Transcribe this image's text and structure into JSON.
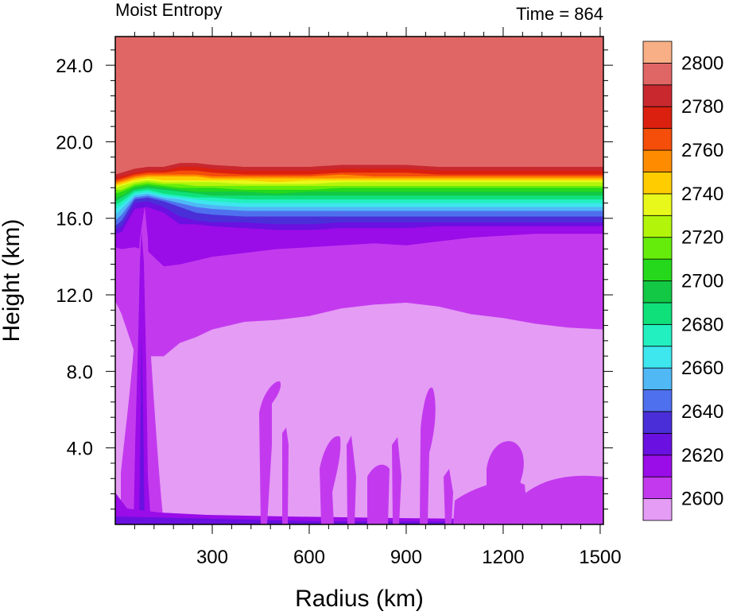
{
  "chart_data": {
    "type": "heatmap",
    "title_left": "Moist Entropy",
    "title_right": "Time = 864",
    "xlabel": "Radius (km)",
    "ylabel": "Height (km)",
    "xlim": [
      0,
      1510
    ],
    "ylim": [
      0,
      25.5
    ],
    "x_ticks": [
      300,
      600,
      900,
      1200,
      1500
    ],
    "x_tick_labels": [
      "300",
      "600",
      "900",
      "1200",
      "1500"
    ],
    "y_ticks": [
      4,
      8,
      12,
      16,
      20,
      24
    ],
    "y_tick_labels": [
      "4.0",
      "8.0",
      "12.0",
      "16.0",
      "20.0",
      "24.0"
    ],
    "colorbar": {
      "levels": [
        2590,
        2600,
        2610,
        2620,
        2630,
        2640,
        2650,
        2660,
        2670,
        2680,
        2690,
        2700,
        2710,
        2720,
        2730,
        2740,
        2750,
        2760,
        2770,
        2780,
        2790,
        2800,
        2810
      ],
      "labels": [
        "2600",
        "2620",
        "2640",
        "2660",
        "2680",
        "2700",
        "2720",
        "2740",
        "2760",
        "2780",
        "2800"
      ],
      "label_values": [
        2600,
        2620,
        2640,
        2660,
        2680,
        2700,
        2720,
        2740,
        2760,
        2780,
        2800
      ],
      "colors": [
        "#E59CF5",
        "#C33AEE",
        "#9A0CE8",
        "#6A10E0",
        "#4A2FD8",
        "#4F70EE",
        "#4FB8F5",
        "#3EE6EE",
        "#22F0C0",
        "#10E07A",
        "#12C845",
        "#25D81B",
        "#66EC0A",
        "#B2F50B",
        "#E8F81A",
        "#FFCC00",
        "#FF8C00",
        "#F44E0A",
        "#DB2010",
        "#C8282E",
        "#E06666",
        "#F8AF86"
      ]
    },
    "shading": {
      "boundary_radius_km": [
        0,
        20,
        60,
        100,
        150,
        200,
        250,
        300,
        400,
        500,
        600,
        700,
        800,
        900,
        1000,
        1100,
        1200,
        1300,
        1400,
        1510
      ],
      "level_heights_km": [
        {
          "level": 2600,
          "z": [
            11.7,
            11.0,
            9.0,
            8.8,
            8.8,
            9.5,
            9.8,
            10.2,
            10.6,
            10.7,
            10.9,
            11.3,
            11.5,
            11.6,
            11.4,
            11.0,
            10.8,
            10.5,
            10.3,
            10.2
          ]
        },
        {
          "level": 2610,
          "z": [
            14.5,
            14.4,
            14.5,
            14.3,
            13.5,
            13.6,
            13.8,
            14.0,
            14.2,
            14.4,
            14.5,
            14.6,
            14.7,
            14.6,
            14.8,
            15.0,
            15.1,
            15.2,
            15.2,
            15.2
          ]
        },
        {
          "level": 2620,
          "z": [
            15.2,
            15.3,
            16.5,
            16.6,
            16.3,
            15.7,
            15.7,
            15.6,
            15.5,
            15.4,
            15.4,
            15.5,
            15.5,
            15.5,
            15.6,
            15.6,
            15.6,
            15.6,
            15.6,
            15.6
          ]
        },
        {
          "level": 2630,
          "z": [
            15.4,
            15.6,
            16.8,
            16.9,
            16.6,
            16.1,
            15.9,
            15.8,
            15.8,
            15.7,
            15.7,
            15.8,
            15.8,
            15.8,
            15.8,
            15.8,
            15.8,
            15.8,
            15.8,
            15.8
          ]
        },
        {
          "level": 2640,
          "z": [
            15.6,
            15.9,
            17.0,
            17.1,
            16.9,
            16.6,
            16.3,
            16.2,
            16.1,
            16.1,
            16.1,
            16.1,
            16.1,
            16.1,
            16.1,
            16.1,
            16.1,
            16.1,
            16.1,
            16.1
          ]
        },
        {
          "level": 2650,
          "z": [
            15.9,
            16.2,
            17.1,
            17.2,
            17.0,
            16.8,
            16.6,
            16.5,
            16.4,
            16.4,
            16.4,
            16.4,
            16.4,
            16.4,
            16.4,
            16.4,
            16.4,
            16.4,
            16.4,
            16.4
          ]
        },
        {
          "level": 2660,
          "z": [
            16.2,
            16.5,
            17.2,
            17.3,
            17.1,
            17.0,
            16.8,
            16.7,
            16.6,
            16.6,
            16.6,
            16.6,
            16.6,
            16.6,
            16.6,
            16.6,
            16.6,
            16.6,
            16.6,
            16.6
          ]
        },
        {
          "level": 2670,
          "z": [
            16.5,
            16.7,
            17.3,
            17.4,
            17.2,
            17.1,
            17.0,
            16.9,
            16.8,
            16.8,
            16.8,
            16.8,
            16.8,
            16.8,
            16.8,
            16.8,
            16.8,
            16.8,
            16.8,
            16.8
          ]
        },
        {
          "level": 2680,
          "z": [
            16.7,
            16.9,
            17.4,
            17.5,
            17.3,
            17.2,
            17.1,
            17.1,
            17.0,
            17.0,
            17.0,
            17.0,
            17.0,
            17.0,
            17.0,
            17.0,
            17.0,
            17.0,
            17.0,
            17.0
          ]
        },
        {
          "level": 2690,
          "z": [
            16.9,
            17.1,
            17.5,
            17.6,
            17.5,
            17.4,
            17.3,
            17.2,
            17.2,
            17.2,
            17.2,
            17.2,
            17.2,
            17.2,
            17.2,
            17.2,
            17.2,
            17.2,
            17.2,
            17.2
          ]
        },
        {
          "level": 2700,
          "z": [
            17.1,
            17.2,
            17.6,
            17.7,
            17.6,
            17.5,
            17.4,
            17.4,
            17.4,
            17.3,
            17.4,
            17.4,
            17.4,
            17.4,
            17.4,
            17.4,
            17.4,
            17.4,
            17.4,
            17.4
          ]
        },
        {
          "level": 2710,
          "z": [
            17.3,
            17.4,
            17.7,
            17.8,
            17.7,
            17.6,
            17.6,
            17.6,
            17.5,
            17.5,
            17.5,
            17.6,
            17.6,
            17.6,
            17.6,
            17.6,
            17.6,
            17.6,
            17.6,
            17.6
          ]
        },
        {
          "level": 2720,
          "z": [
            17.5,
            17.5,
            17.8,
            17.9,
            17.8,
            17.8,
            17.7,
            17.7,
            17.7,
            17.7,
            17.7,
            17.7,
            17.7,
            17.7,
            17.7,
            17.7,
            17.7,
            17.7,
            17.7,
            17.7
          ]
        },
        {
          "level": 2730,
          "z": [
            17.6,
            17.7,
            17.9,
            18.0,
            17.9,
            17.9,
            17.9,
            17.9,
            17.8,
            17.8,
            17.8,
            17.9,
            17.9,
            17.9,
            17.9,
            17.9,
            17.9,
            17.9,
            17.9,
            17.9
          ]
        },
        {
          "level": 2740,
          "z": [
            17.7,
            17.8,
            18.0,
            18.1,
            18.0,
            18.0,
            18.0,
            18.0,
            18.0,
            17.9,
            18.0,
            18.0,
            18.0,
            18.0,
            18.0,
            18.0,
            18.0,
            18.0,
            18.0,
            18.0
          ]
        },
        {
          "level": 2750,
          "z": [
            17.8,
            17.9,
            18.1,
            18.2,
            18.2,
            18.2,
            18.2,
            18.1,
            18.1,
            18.1,
            18.1,
            18.1,
            18.1,
            18.1,
            18.1,
            18.1,
            18.1,
            18.1,
            18.1,
            18.1
          ]
        },
        {
          "level": 2760,
          "z": [
            17.9,
            18.0,
            18.2,
            18.3,
            18.3,
            18.3,
            18.3,
            18.2,
            18.2,
            18.2,
            18.2,
            18.3,
            18.2,
            18.2,
            18.2,
            18.2,
            18.2,
            18.2,
            18.2,
            18.2
          ]
        },
        {
          "level": 2770,
          "z": [
            18.0,
            18.1,
            18.3,
            18.4,
            18.4,
            18.5,
            18.5,
            18.4,
            18.3,
            18.3,
            18.3,
            18.4,
            18.4,
            18.4,
            18.3,
            18.3,
            18.3,
            18.3,
            18.3,
            18.3
          ]
        },
        {
          "level": 2780,
          "z": [
            18.1,
            18.2,
            18.4,
            18.5,
            18.5,
            18.7,
            18.7,
            18.6,
            18.5,
            18.5,
            18.5,
            18.6,
            18.6,
            18.6,
            18.5,
            18.5,
            18.5,
            18.5,
            18.5,
            18.5
          ]
        },
        {
          "level": 2790,
          "z": [
            18.3,
            18.4,
            18.6,
            18.7,
            18.7,
            18.9,
            18.9,
            18.8,
            18.7,
            18.7,
            18.7,
            18.8,
            18.8,
            18.8,
            18.7,
            18.7,
            18.7,
            18.7,
            18.7,
            18.7
          ]
        }
      ]
    }
  }
}
